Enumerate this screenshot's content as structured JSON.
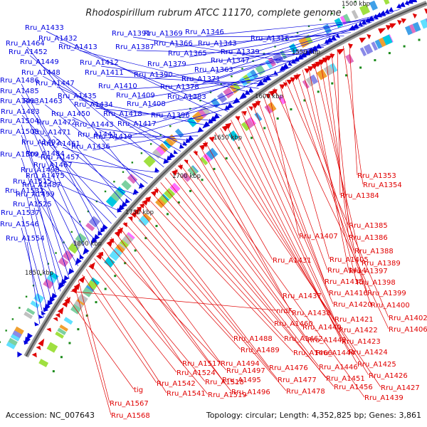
{
  "title": "Rhodospirillum rubrum ATCC 11170, complete genome",
  "accession": "Accession: NC_007643",
  "summary": "Topology: circular; Length: 4,352,825 bp; Genes: 3,861",
  "scale_labels": [
    "1500 kbp",
    "1550 kbp",
    "1600 kbp",
    "1650 kbp",
    "1700 kbp",
    "1750 kbp",
    "1800 kbp",
    "1850 kbp"
  ],
  "colors": {
    "forward": "#0000e0",
    "reverse": "#e00000",
    "backbone": "#707070",
    "marks": "#1a8a1a"
  },
  "forward_labels": [
    "Rru_A1315",
    "Rru_A1339",
    "Rru_A1343",
    "Rru_A1346",
    "Rru_A1347",
    "Rru_A1363",
    "Rru_A1365",
    "Rru_A1366",
    "Rru_A1369",
    "Rru_A1371",
    "Rru_A1378",
    "Rru_A1379",
    "Rru_A1383",
    "Rru_A1387",
    "Rru_A1390",
    "Rru_A1391",
    "Rru_A1396",
    "Rru_A1408",
    "Rru_A1409",
    "Rru_A1410",
    "Rru_A1411",
    "Rru_A1412",
    "Rru_A1413",
    "Rru_A1417",
    "Rru_A1418",
    "Rru_A1419",
    "Rru_A1432",
    "Rru_A1433",
    "Rru_A1434",
    "Rru_A1435",
    "Rru_A1436",
    "Rru_A1441",
    "Rru_A1443",
    "Rru_A1447",
    "Rru_A1448",
    "Rru_A1449",
    "Rru_A1450",
    "Rru_A1452",
    "Rru_A1457",
    "Rru_A1461",
    "Rru_A1463",
    "Rru_A1464",
    "Rru_A1467",
    "Rru_A1471",
    "Rru_A1472",
    "Rru_A1475",
    "Rru_A1483",
    "Rru_A1484",
    "Rru_A1485",
    "Rru_A1486",
    "Rru_A1487",
    "Rru_A1492",
    "Rru_A1493",
    "Rru_A1498",
    "Rru_A1499",
    "Rru_A1503",
    "Rru_A1504",
    "Rru_A1509",
    "Rru_A1515",
    "Rru_A1525",
    "Rru_A1532",
    "Rru_A1537",
    "Rru_A1546",
    "Rru_A1554"
  ],
  "reverse_labels": [
    "Rru_A1353",
    "Rru_A1354",
    "Rru_A1384",
    "Rru_A1385",
    "Rru_A1386",
    "Rru_A1388",
    "Rru_A1389",
    "Rru_A1397",
    "Rru_A1398",
    "Rru_A1399",
    "Rru_A1400",
    "Rru_A1402",
    "Rru_A1405",
    "Rru_A1406",
    "Rru_A1407",
    "Rru_A1414",
    "Rru_A1415",
    "Rru_A1416",
    "Rru_A1420",
    "Rru_A1421",
    "Rru_A1422",
    "Rru_A1423",
    "Rru_A1424",
    "Rru_A1425",
    "Rru_A1426",
    "Rru_A1427",
    "Rru_A1431",
    "Rru_A1437",
    "Rru_A1438",
    "Rru_A1439",
    "Rru_A1440",
    "Rru_A1442",
    "Rru_A1444",
    "Rru_A1446",
    "Rru_A1451",
    "Rru_A1456",
    "Rru_A1460",
    "Rru_A1462",
    "Rru_A1466",
    "Rru_A1476",
    "Rru_A1477",
    "Rru_A1478",
    "Rru_A1488",
    "Rru_A1489",
    "Rru_A1494",
    "Rru_A1495",
    "Rru_A1496",
    "Rru_A1497",
    "Rru_A1517",
    "Rru_A1518",
    "Rru_A1519",
    "Rru_A1524",
    "Rru_A1541",
    "Rru_A1542",
    "Rru_A1567",
    "Rru_A1568",
    "nrdF",
    "tig"
  ]
}
